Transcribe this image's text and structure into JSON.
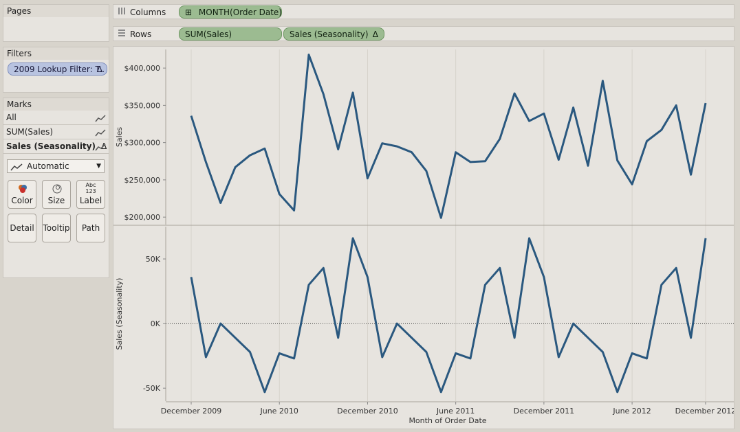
{
  "pages": {
    "title": "Pages"
  },
  "filters": {
    "title": "Filters",
    "pill": "2009 Lookup Filter: T..",
    "delta": "Δ"
  },
  "marks": {
    "title": "Marks",
    "rows": [
      {
        "label": "All"
      },
      {
        "label": "SUM(Sales)"
      },
      {
        "label": "Sales (Seasonality)",
        "delta": "Δ"
      }
    ],
    "mark_type": "Automatic",
    "buttons": {
      "color": "Color",
      "size": "Size",
      "label": "Label",
      "detail": "Detail",
      "tooltip": "Tooltip",
      "path": "Path"
    },
    "label_icon_text": {
      "top": "Abc",
      "bottom": "123"
    }
  },
  "shelves": {
    "columns_label": "Columns",
    "columns_pill": "MONTH(Order Date)",
    "columns_pill_icon": "⊞",
    "rows_label": "Rows",
    "rows_pills": [
      "SUM(Sales)",
      "Sales (Seasonality)"
    ],
    "rows_pill_delta": "Δ"
  },
  "colors": {
    "line": "#2a587f",
    "pill_green": "#9cbb91",
    "pill_blue": "#b8c3e0"
  },
  "chart_data": [
    {
      "type": "line",
      "xlabel": "Month of Order Date",
      "ylabel": "Sales",
      "x_tick_labels": [
        "December 2009",
        "June 2010",
        "December 2010",
        "June 2011",
        "December 2011",
        "June 2012",
        "December 2012"
      ],
      "y_tick_labels": [
        "$200,000",
        "$250,000",
        "$300,000",
        "$350,000",
        "$400,000"
      ],
      "ylim": [
        190000,
        425000
      ],
      "series": [
        {
          "values": [
            336000,
            274000,
            219000,
            267000,
            283000,
            292000,
            231000,
            209000,
            418000,
            365000,
            291000,
            367000,
            252000,
            299000,
            295000,
            287000,
            262000,
            199000,
            287000,
            274000,
            275000,
            305000,
            366000,
            329000,
            339000,
            277000,
            347000,
            269000,
            383000,
            276000,
            244000,
            302000,
            317000,
            350000,
            257000,
            353000
          ]
        }
      ]
    },
    {
      "type": "line",
      "xlabel": "Month of Order Date",
      "ylabel": "Sales (Seasonality)",
      "x_tick_labels": [
        "December 2009",
        "June 2010",
        "December 2010",
        "June 2011",
        "December 2011",
        "June 2012",
        "December 2012"
      ],
      "y_tick_labels": [
        "-50K",
        "0K",
        "50K"
      ],
      "ylim": [
        -60000,
        75000
      ],
      "zero_line": true,
      "series": [
        {
          "values": [
            36000,
            -26000,
            0,
            -11000,
            -22000,
            -53000,
            -23000,
            -27000,
            30000,
            43000,
            -11000,
            66000,
            36000,
            -26000,
            0,
            -11000,
            -22000,
            -53000,
            -23000,
            -27000,
            30000,
            43000,
            -11000,
            66000,
            36000,
            -26000,
            0,
            -11000,
            -22000,
            -53000,
            -23000,
            -27000,
            30000,
            43000,
            -11000,
            66000
          ]
        }
      ]
    }
  ]
}
